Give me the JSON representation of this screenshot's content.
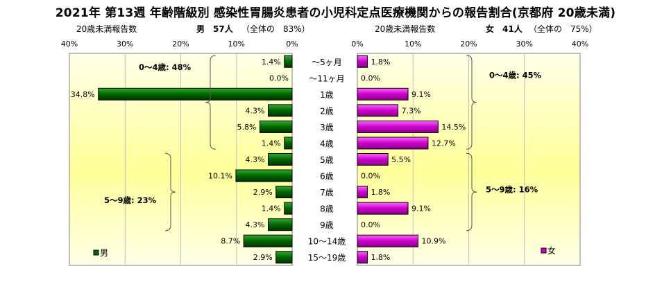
{
  "title": "2021年 第13週 年齢階級別 感染性胃腸炎患者の小児科定点医療機関からの報告割合(京都府 20歳未満)",
  "left_header": {
    "caption": "20歳未満報告数",
    "sex_count": "男　57人",
    "share": "（全体の　83%）"
  },
  "right_header": {
    "caption": "20歳未満報告数",
    "sex_count": "女　41人",
    "share": "（全体の　75%）"
  },
  "colors": {
    "male": "#006600",
    "female": "#cc00cc",
    "bg_light": "#ffffe6",
    "bg_dark": "#ffff99"
  },
  "chart_data": [
    {
      "type": "bar",
      "orientation": "horizontal",
      "direction": "right-to-left",
      "categories": [
        "～5ヶ月",
        "～11ヶ月",
        "1歳",
        "2歳",
        "3歳",
        "4歳",
        "5歳",
        "6歳",
        "7歳",
        "8歳",
        "9歳",
        "10～14歳",
        "15～19歳"
      ],
      "series": [
        {
          "name": "男",
          "values": [
            1.4,
            0.0,
            34.8,
            4.3,
            5.8,
            1.4,
            4.3,
            10.1,
            2.9,
            1.4,
            4.3,
            8.7,
            2.9
          ]
        }
      ],
      "value_labels": [
        "1.4%",
        "0.0%",
        "34.8%",
        "4.3%",
        "5.8%",
        "1.4%",
        "4.3%",
        "10.1%",
        "2.9%",
        "1.4%",
        "4.3%",
        "8.7%",
        "2.9%"
      ],
      "xlim": [
        0,
        40
      ],
      "xticks": [
        "40%",
        "30%",
        "20%",
        "10%",
        "0%"
      ],
      "legend": "男",
      "legend_position": "bottom-left",
      "annotations": [
        "0～4歳: 48%",
        "5～9歳: 23%"
      ]
    },
    {
      "type": "bar",
      "orientation": "horizontal",
      "direction": "left-to-right",
      "categories": [
        "～5ヶ月",
        "～11ヶ月",
        "1歳",
        "2歳",
        "3歳",
        "4歳",
        "5歳",
        "6歳",
        "7歳",
        "8歳",
        "9歳",
        "10～14歳",
        "15～19歳"
      ],
      "series": [
        {
          "name": "女",
          "values": [
            1.8,
            0.0,
            9.1,
            7.3,
            14.5,
            12.7,
            5.5,
            0.0,
            1.8,
            9.1,
            0.0,
            10.9,
            1.8
          ]
        }
      ],
      "value_labels": [
        "1.8%",
        "0.0%",
        "9.1%",
        "7.3%",
        "14.5%",
        "12.7%",
        "5.5%",
        "0.0%",
        "1.8%",
        "9.1%",
        "0.0%",
        "10.9%",
        "1.8%"
      ],
      "xlim": [
        0,
        40
      ],
      "xticks": [
        "0%",
        "10%",
        "20%",
        "30%",
        "40%"
      ],
      "legend": "女",
      "legend_position": "bottom-right",
      "annotations": [
        "0～4歳: 45%",
        "5～9歳: 16%"
      ]
    }
  ]
}
